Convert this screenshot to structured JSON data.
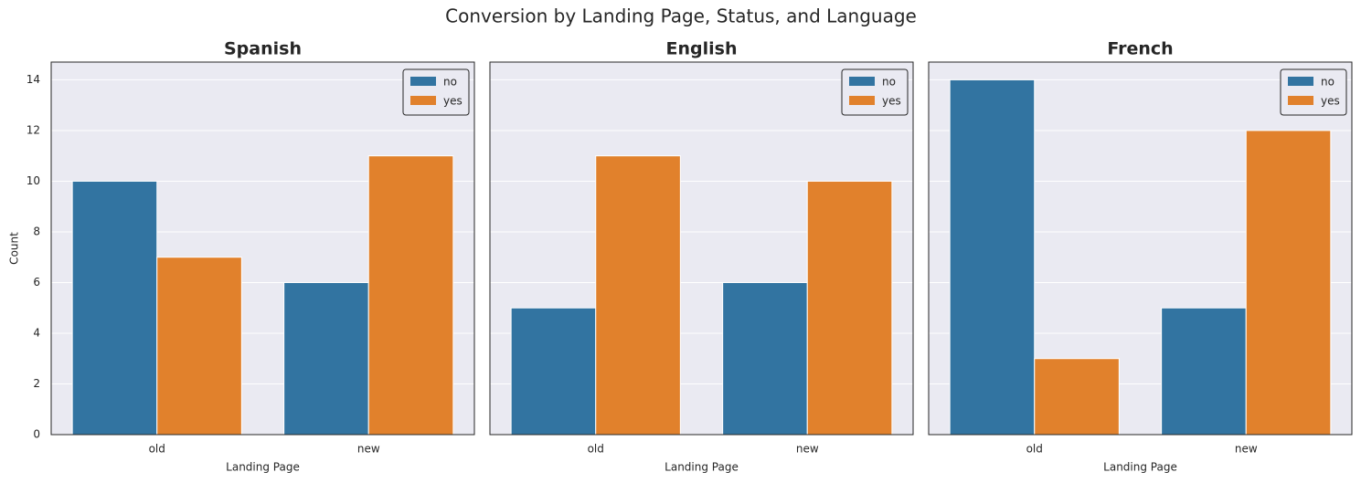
{
  "suptitle": "Conversion by Landing Page, Status, and Language",
  "chart_data": [
    {
      "type": "bar",
      "title": "Spanish",
      "xlabel": "Landing Page",
      "ylabel": "Count",
      "categories": [
        "old",
        "new"
      ],
      "series": [
        {
          "name": "no",
          "color": "#3274a1",
          "values": [
            10,
            6
          ]
        },
        {
          "name": "yes",
          "color": "#e1812c",
          "values": [
            7,
            11
          ]
        }
      ],
      "ylim": [
        0,
        14.7
      ],
      "yticks": [
        0,
        2,
        4,
        6,
        8,
        10,
        12,
        14
      ],
      "grid": true,
      "legend": "upper right"
    },
    {
      "type": "bar",
      "title": "English",
      "xlabel": "Landing Page",
      "categories": [
        "old",
        "new"
      ],
      "series": [
        {
          "name": "no",
          "color": "#3274a1",
          "values": [
            5,
            6
          ]
        },
        {
          "name": "yes",
          "color": "#e1812c",
          "values": [
            11,
            10
          ]
        }
      ],
      "ylim": [
        0,
        14.7
      ],
      "yticks": [
        0,
        2,
        4,
        6,
        8,
        10,
        12,
        14
      ],
      "grid": true,
      "legend": "upper right"
    },
    {
      "type": "bar",
      "title": "French",
      "xlabel": "Landing Page",
      "categories": [
        "old",
        "new"
      ],
      "series": [
        {
          "name": "no",
          "color": "#3274a1",
          "values": [
            14,
            5
          ]
        },
        {
          "name": "yes",
          "color": "#e1812c",
          "values": [
            3,
            12
          ]
        }
      ],
      "ylim": [
        0,
        14.7
      ],
      "yticks": [
        0,
        2,
        4,
        6,
        8,
        10,
        12,
        14
      ],
      "grid": true,
      "legend": "upper right"
    }
  ]
}
